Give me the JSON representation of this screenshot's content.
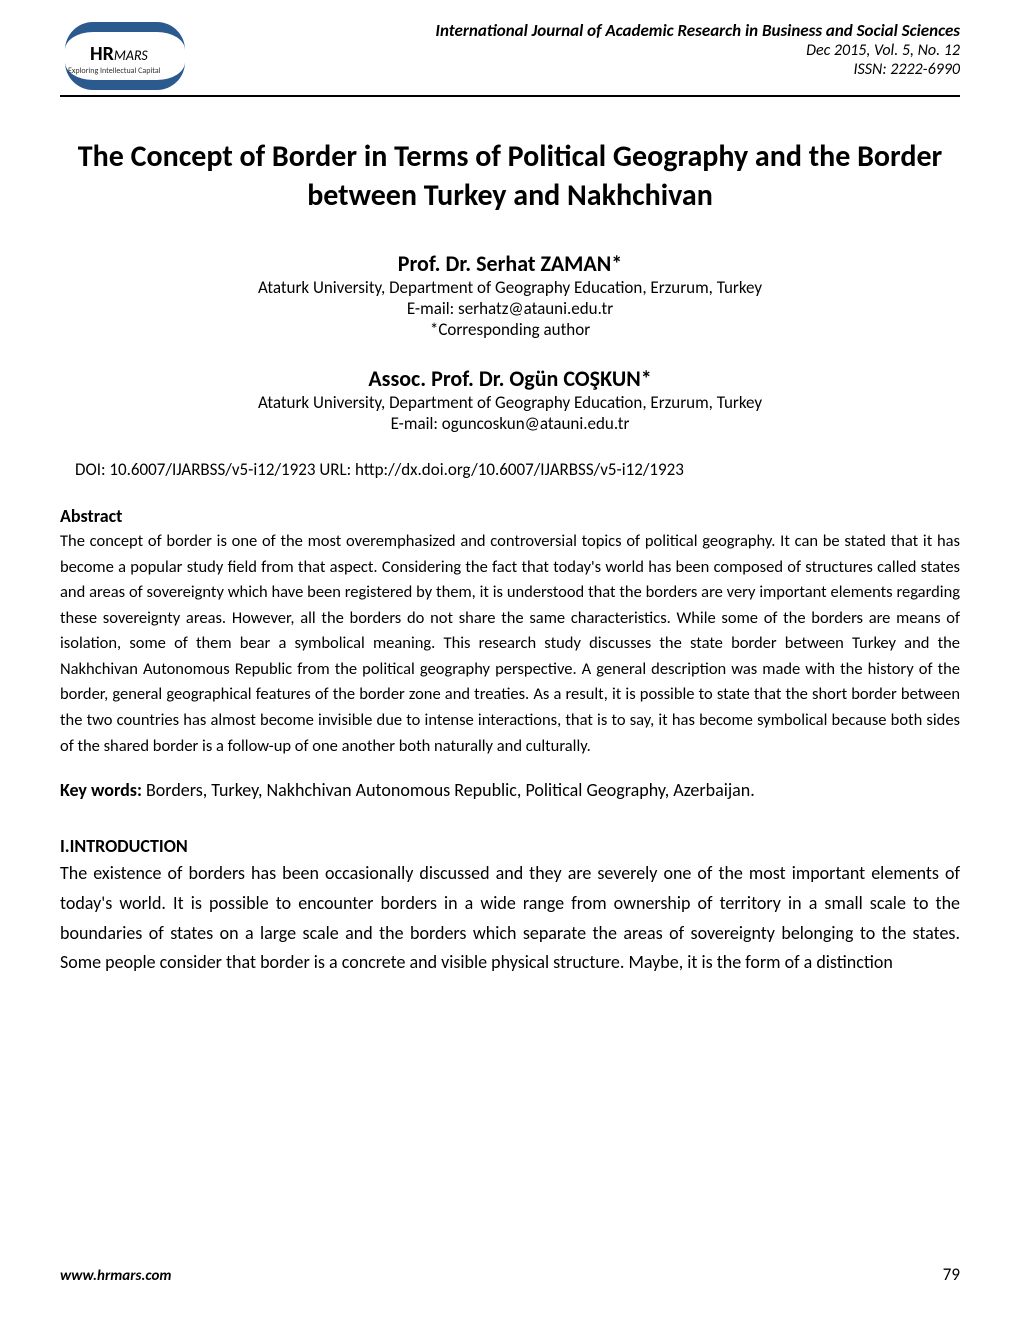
{
  "header": {
    "logo_main": "HR",
    "logo_sub": "MARS",
    "logo_tagline": "Exploring Intellectual Capital",
    "journal_name": "International Journal of Academic Research in Business and Social Sciences",
    "journal_issue": "Dec 2015, Vol. 5, No. 12",
    "journal_issn": "ISSN: 2222-6990"
  },
  "title": "The Concept of Border in Terms of Political Geography and the Border between Turkey and Nakhchivan",
  "authors": [
    {
      "name": "Prof. Dr. Serhat ZAMAN*",
      "affiliation": "Ataturk University, Department of Geography Education, Erzurum, Turkey",
      "email": "E-mail: serhatz@atauni.edu.tr",
      "corresponding": "*Corresponding author"
    },
    {
      "name": "Assoc. Prof. Dr. Ogün COŞKUN*",
      "affiliation": "Ataturk University, Department of Geography Education, Erzurum, Turkey",
      "email": "E-mail: oguncoskun@atauni.edu.tr",
      "corresponding": ""
    }
  ],
  "doi_line": "DOI:    10.6007/IJARBSS/v5-i12/1923   URL: http://dx.doi.org/10.6007/IJARBSS/v5-i12/1923",
  "abstract_heading": "Abstract",
  "abstract_text": "The concept of border is one of the most overemphasized and controversial topics of political geography. It can be stated that it has become a popular study field from that aspect. Considering the fact that today's world has been composed of structures called states and areas of sovereignty which have been registered by them, it is understood that the borders are very important elements regarding these sovereignty areas. However, all the borders do not share the same characteristics. While some of the borders are means of isolation, some of them bear a symbolical meaning. This research study discusses the state border between Turkey and the Nakhchivan Autonomous Republic from the political geography perspective. A general description was made with the history of the border, general geographical features of the border zone and treaties.  As a result, it is possible to state that the short border between the two countries has almost become invisible due to intense interactions,  that is to say, it has become symbolical because  both sides of the shared border  is a follow-up of one another both naturally and culturally.",
  "keywords_label": "Key words:",
  "keywords_text": " Borders, Turkey, Nakhchivan Autonomous Republic, Political Geography, Azerbaijan.",
  "intro_heading": "I.INTRODUCTION",
  "intro_text": "The existence of borders has been occasionally discussed and they are severely one of the most important elements of today's world.  It is possible to encounter borders in a wide range from ownership of territory in a small scale to the boundaries of states on a large scale and the borders which separate the areas of sovereignty belonging to the states. Some people consider that border is a concrete and visible physical structure. Maybe, it is the form of a distinction",
  "footer": {
    "url": "www.hrmars.com",
    "page": "79"
  },
  "colors": {
    "text": "#000000",
    "logo_blue": "#2b5a8f",
    "background": "#ffffff"
  },
  "typography": {
    "title_fontsize": 30,
    "author_name_fontsize": 22,
    "body_fontsize": 17,
    "abstract_fontsize": 16.5,
    "font_family": "Calibri"
  }
}
